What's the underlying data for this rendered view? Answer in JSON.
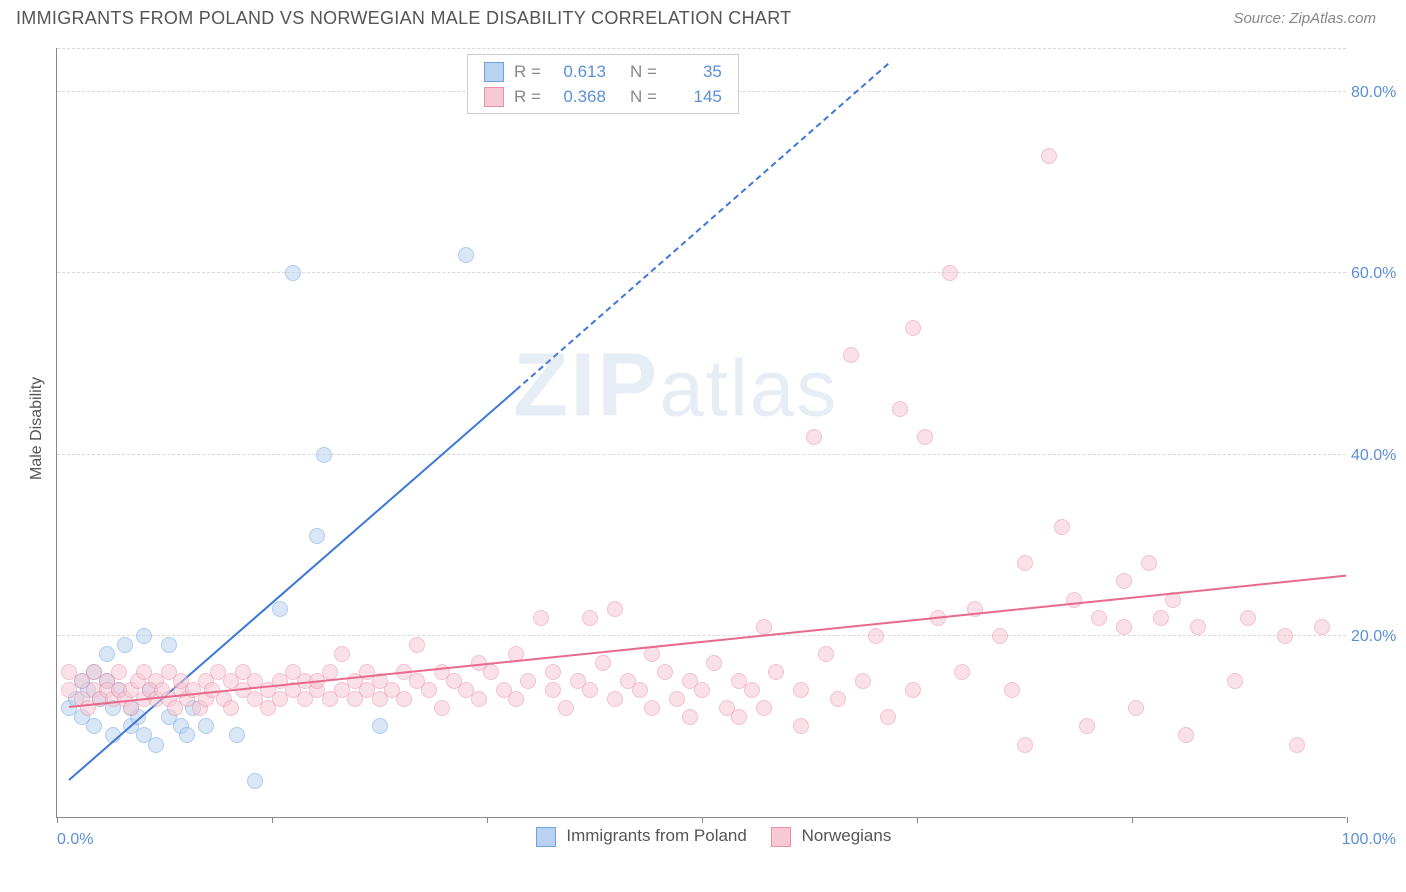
{
  "title": "IMMIGRANTS FROM POLAND VS NORWEGIAN MALE DISABILITY CORRELATION CHART",
  "source": "Source: ZipAtlas.com",
  "ylabel": "Male Disability",
  "watermark_bold": "ZIP",
  "watermark_light": "atlas",
  "chart": {
    "type": "scatter",
    "background_color": "#ffffff",
    "grid_color": "#d8d8d8",
    "axis_color": "#888888",
    "tick_label_color": "#5b8fd6",
    "tick_fontsize": 16,
    "xlim": [
      -2,
      102
    ],
    "ylim": [
      0,
      85
    ],
    "xticks_pct": [
      0,
      16.7,
      33.3,
      50,
      66.7,
      83.3,
      100
    ],
    "xlabel_min": "0.0%",
    "xlabel_max": "100.0%",
    "yticks": [
      {
        "v": 20,
        "label": "20.0%"
      },
      {
        "v": 40,
        "label": "40.0%"
      },
      {
        "v": 60,
        "label": "60.0%"
      },
      {
        "v": 80,
        "label": "80.0%"
      }
    ],
    "marker_radius": 8,
    "marker_opacity": 0.55,
    "series": [
      {
        "name": "Immigrants from Poland",
        "key": "poland",
        "fill": "#b9d2f0",
        "stroke": "#6fa3e0",
        "line_color": "#3d78d6",
        "R": "0.613",
        "N": "35",
        "trend_solid": {
          "x1": -1,
          "y1": 4,
          "x2": 35,
          "y2": 47
        },
        "trend_dash": {
          "x1": 35,
          "y1": 47,
          "x2": 65,
          "y2": 83
        },
        "points": [
          [
            -1,
            12
          ],
          [
            -0.5,
            13
          ],
          [
            0,
            15
          ],
          [
            0,
            11
          ],
          [
            0.5,
            14
          ],
          [
            1,
            16
          ],
          [
            1,
            10
          ],
          [
            1.5,
            13
          ],
          [
            2,
            15
          ],
          [
            2,
            18
          ],
          [
            2.5,
            9
          ],
          [
            2.5,
            12
          ],
          [
            3,
            14
          ],
          [
            3.5,
            19
          ],
          [
            4,
            10
          ],
          [
            4,
            12
          ],
          [
            4.5,
            11
          ],
          [
            5,
            9
          ],
          [
            5,
            20
          ],
          [
            5.5,
            14
          ],
          [
            6,
            8
          ],
          [
            7,
            19
          ],
          [
            7,
            11
          ],
          [
            8,
            10
          ],
          [
            8.5,
            9
          ],
          [
            9,
            12
          ],
          [
            10,
            10
          ],
          [
            12.5,
            9
          ],
          [
            14,
            4
          ],
          [
            16,
            23
          ],
          [
            17,
            60
          ],
          [
            19,
            31
          ],
          [
            19.5,
            40
          ],
          [
            24,
            10
          ],
          [
            31,
            62
          ]
        ]
      },
      {
        "name": "Norwegians",
        "key": "norwegians",
        "fill": "#f6c9d4",
        "stroke": "#ea8fa8",
        "line_color": "#e86a8d",
        "R": "0.368",
        "N": "145",
        "trend_solid": {
          "x1": -1,
          "y1": 12,
          "x2": 102,
          "y2": 26.5
        },
        "points": [
          [
            -1,
            14
          ],
          [
            -1,
            16
          ],
          [
            0,
            13
          ],
          [
            0,
            15
          ],
          [
            0.5,
            12
          ],
          [
            1,
            14
          ],
          [
            1,
            16
          ],
          [
            1.5,
            13
          ],
          [
            2,
            15
          ],
          [
            2,
            14
          ],
          [
            2.5,
            13
          ],
          [
            3,
            14
          ],
          [
            3,
            16
          ],
          [
            3.5,
            13
          ],
          [
            4,
            12
          ],
          [
            4,
            14
          ],
          [
            4.5,
            15
          ],
          [
            5,
            13
          ],
          [
            5,
            16
          ],
          [
            5.5,
            14
          ],
          [
            6,
            13
          ],
          [
            6,
            15
          ],
          [
            6.5,
            14
          ],
          [
            7,
            13
          ],
          [
            7,
            16
          ],
          [
            7.5,
            12
          ],
          [
            8,
            14
          ],
          [
            8,
            15
          ],
          [
            8.5,
            13
          ],
          [
            9,
            14
          ],
          [
            9.5,
            12
          ],
          [
            10,
            15
          ],
          [
            10,
            13
          ],
          [
            10.5,
            14
          ],
          [
            11,
            16
          ],
          [
            11.5,
            13
          ],
          [
            12,
            12
          ],
          [
            12,
            15
          ],
          [
            13,
            14
          ],
          [
            13,
            16
          ],
          [
            14,
            13
          ],
          [
            14,
            15
          ],
          [
            15,
            14
          ],
          [
            15,
            12
          ],
          [
            16,
            15
          ],
          [
            16,
            13
          ],
          [
            17,
            14
          ],
          [
            17,
            16
          ],
          [
            18,
            15
          ],
          [
            18,
            13
          ],
          [
            19,
            14
          ],
          [
            19,
            15
          ],
          [
            20,
            16
          ],
          [
            20,
            13
          ],
          [
            21,
            14
          ],
          [
            21,
            18
          ],
          [
            22,
            15
          ],
          [
            22,
            13
          ],
          [
            23,
            14
          ],
          [
            23,
            16
          ],
          [
            24,
            15
          ],
          [
            24,
            13
          ],
          [
            25,
            14
          ],
          [
            26,
            16
          ],
          [
            26,
            13
          ],
          [
            27,
            15
          ],
          [
            27,
            19
          ],
          [
            28,
            14
          ],
          [
            29,
            16
          ],
          [
            29,
            12
          ],
          [
            30,
            15
          ],
          [
            31,
            14
          ],
          [
            32,
            17
          ],
          [
            32,
            13
          ],
          [
            33,
            16
          ],
          [
            34,
            14
          ],
          [
            35,
            18
          ],
          [
            35,
            13
          ],
          [
            36,
            15
          ],
          [
            37,
            22
          ],
          [
            38,
            14
          ],
          [
            38,
            16
          ],
          [
            39,
            12
          ],
          [
            40,
            15
          ],
          [
            41,
            22
          ],
          [
            41,
            14
          ],
          [
            42,
            17
          ],
          [
            43,
            23
          ],
          [
            43,
            13
          ],
          [
            44,
            15
          ],
          [
            45,
            14
          ],
          [
            46,
            18
          ],
          [
            46,
            12
          ],
          [
            47,
            16
          ],
          [
            48,
            13
          ],
          [
            49,
            15
          ],
          [
            49,
            11
          ],
          [
            50,
            14
          ],
          [
            51,
            17
          ],
          [
            52,
            12
          ],
          [
            53,
            15
          ],
          [
            53,
            11
          ],
          [
            54,
            14
          ],
          [
            55,
            21
          ],
          [
            55,
            12
          ],
          [
            56,
            16
          ],
          [
            58,
            10
          ],
          [
            58,
            14
          ],
          [
            59,
            42
          ],
          [
            60,
            18
          ],
          [
            61,
            13
          ],
          [
            62,
            51
          ],
          [
            63,
            15
          ],
          [
            64,
            20
          ],
          [
            65,
            11
          ],
          [
            66,
            45
          ],
          [
            67,
            14
          ],
          [
            67,
            54
          ],
          [
            68,
            42
          ],
          [
            69,
            22
          ],
          [
            70,
            60
          ],
          [
            71,
            16
          ],
          [
            72,
            23
          ],
          [
            74,
            20
          ],
          [
            75,
            14
          ],
          [
            76,
            28
          ],
          [
            76,
            8
          ],
          [
            78,
            73
          ],
          [
            79,
            32
          ],
          [
            80,
            24
          ],
          [
            81,
            10
          ],
          [
            82,
            22
          ],
          [
            84,
            21
          ],
          [
            84,
            26
          ],
          [
            85,
            12
          ],
          [
            86,
            28
          ],
          [
            87,
            22
          ],
          [
            88,
            24
          ],
          [
            89,
            9
          ],
          [
            90,
            21
          ],
          [
            93,
            15
          ],
          [
            94,
            22
          ],
          [
            97,
            20
          ],
          [
            98,
            8
          ],
          [
            100,
            21
          ]
        ]
      }
    ],
    "legend_bottom": [
      {
        "swatch_key": "poland",
        "label": "Immigrants from Poland"
      },
      {
        "swatch_key": "norwegians",
        "label": "Norwegians"
      }
    ]
  }
}
